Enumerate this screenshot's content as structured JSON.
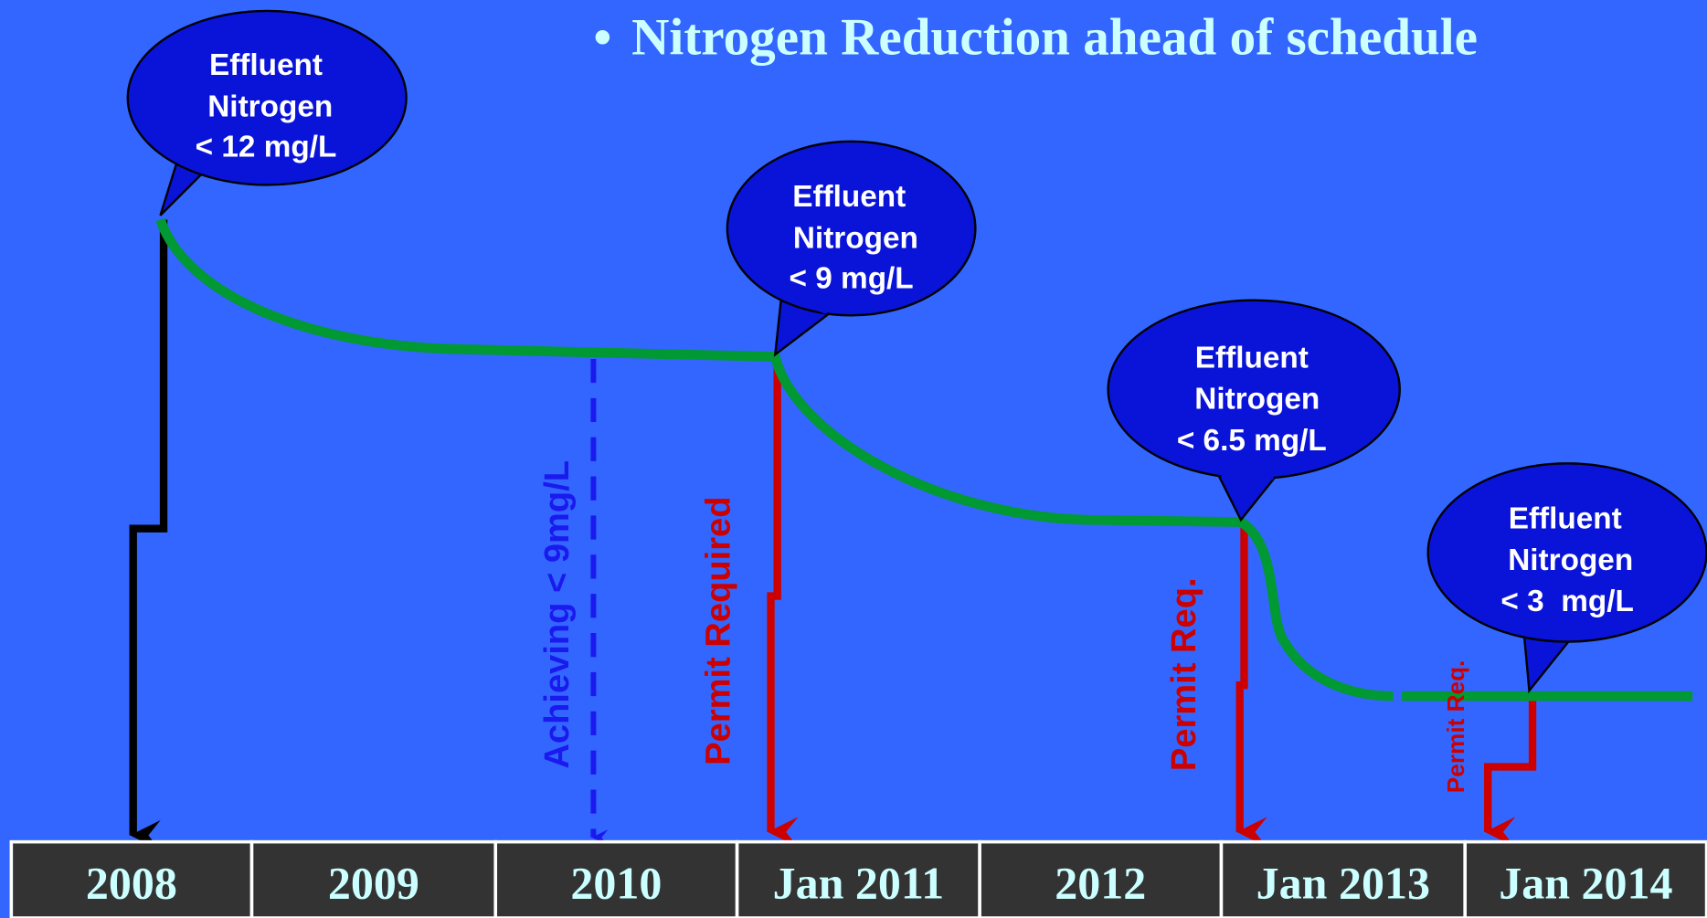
{
  "title": "Nitrogen Reduction ahead of schedule",
  "callouts": [
    {
      "lines": [
        "Effluent",
        "Nitrogen",
        "< 12 mg/L"
      ]
    },
    {
      "lines": [
        "Effluent",
        "Nitrogen",
        "< 9 mg/L"
      ]
    },
    {
      "lines": [
        "Effluent",
        "Nitrogen",
        "< 6.5 mg/L"
      ]
    },
    {
      "lines": [
        "Effluent",
        "Nitrogen",
        "< 3  mg/L"
      ]
    }
  ],
  "markers": [
    "Achieving < 9mg/L",
    "Permit Required",
    "Permit Req.",
    "Permit Req."
  ],
  "timeline": [
    "2008",
    "2009",
    "2010",
    "Jan 2011",
    "2012",
    "Jan 2013",
    "Jan 2014"
  ]
}
